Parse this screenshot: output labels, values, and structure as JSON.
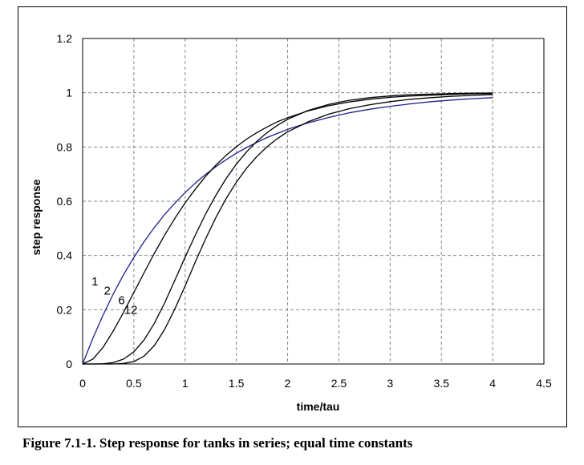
{
  "caption": "Figure 7.1-1.  Step response for tanks in series; equal time constants",
  "chart_data": {
    "type": "line",
    "title": "",
    "xlabel": "time/tau",
    "ylabel": "step response",
    "xlim": [
      0,
      4.5
    ],
    "ylim": [
      0,
      1.2
    ],
    "x_ticks": [
      "0",
      "0.5",
      "1",
      "1.5",
      "2",
      "2.5",
      "3",
      "3.5",
      "4",
      "4.5"
    ],
    "y_ticks": [
      "0",
      "0.2",
      "0.4",
      "0.6",
      "0.8",
      "1",
      "1.2"
    ],
    "grid": "dashed",
    "legend": "none",
    "x": [
      0,
      0.1,
      0.2,
      0.3,
      0.4,
      0.5,
      0.6,
      0.7,
      0.8,
      0.9,
      1.0,
      1.1,
      1.2,
      1.3,
      1.4,
      1.5,
      1.6,
      1.7,
      1.8,
      1.9,
      2.0,
      2.2,
      2.4,
      2.6,
      2.8,
      3.0,
      3.2,
      3.4,
      3.6,
      3.8,
      4.0
    ],
    "series": [
      {
        "name": "1",
        "color": "#1f1f8c",
        "values": [
          0,
          0.095,
          0.181,
          0.259,
          0.33,
          0.393,
          0.451,
          0.503,
          0.551,
          0.593,
          0.632,
          0.667,
          0.699,
          0.727,
          0.753,
          0.777,
          0.798,
          0.817,
          0.835,
          0.85,
          0.865,
          0.889,
          0.909,
          0.926,
          0.939,
          0.95,
          0.959,
          0.967,
          0.973,
          0.978,
          0.982
        ]
      },
      {
        "name": "2",
        "color": "#000000",
        "values": [
          0,
          0.018,
          0.062,
          0.122,
          0.191,
          0.264,
          0.337,
          0.408,
          0.475,
          0.537,
          0.594,
          0.645,
          0.692,
          0.733,
          0.769,
          0.801,
          0.829,
          0.853,
          0.874,
          0.893,
          0.908,
          0.933,
          0.952,
          0.966,
          0.976,
          0.983,
          0.988,
          0.991,
          0.994,
          0.996,
          0.997
        ]
      },
      {
        "name": "6",
        "color": "#000000",
        "values": [
          0,
          1e-05,
          0.0006,
          0.005,
          0.018,
          0.045,
          0.089,
          0.15,
          0.225,
          0.309,
          0.394,
          0.476,
          0.553,
          0.622,
          0.684,
          0.737,
          0.782,
          0.821,
          0.853,
          0.88,
          0.902,
          0.935,
          0.957,
          0.972,
          0.982,
          0.988,
          0.993,
          0.995,
          0.997,
          0.998,
          0.999
        ]
      },
      {
        "name": "12",
        "color": "#000000",
        "values": [
          0,
          0,
          0,
          0.0001,
          0.002,
          0.009,
          0.029,
          0.068,
          0.127,
          0.203,
          0.288,
          0.377,
          0.461,
          0.54,
          0.61,
          0.67,
          0.722,
          0.765,
          0.801,
          0.831,
          0.856,
          0.893,
          0.921,
          0.941,
          0.956,
          0.967,
          0.976,
          0.982,
          0.987,
          0.99,
          0.993
        ]
      }
    ],
    "annotations": [
      "1",
      "2",
      "6",
      "12"
    ]
  }
}
